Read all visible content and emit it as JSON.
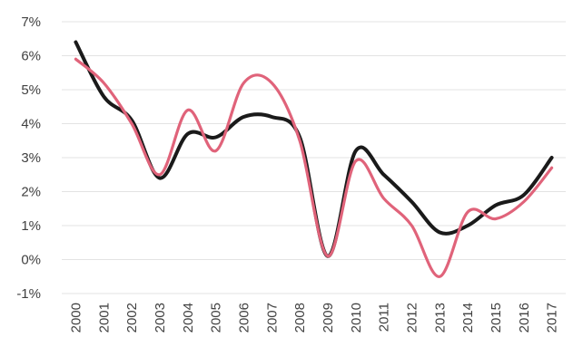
{
  "chart_data": {
    "type": "line",
    "title": "",
    "xlabel": "",
    "ylabel": "",
    "x": [
      "2000",
      "2001",
      "2002",
      "2003",
      "2004",
      "2005",
      "2006",
      "2007",
      "2008",
      "2009",
      "2010",
      "2011",
      "2012",
      "2013",
      "2014",
      "2015",
      "2016",
      "2017"
    ],
    "ylim": [
      -1,
      7
    ],
    "y_ticks": [
      "-1%",
      "0%",
      "1%",
      "2%",
      "3%",
      "4%",
      "5%",
      "6%",
      "7%"
    ],
    "grid": true,
    "legend": "none",
    "series": [
      {
        "color": "#1a1a1a",
        "values": [
          6.4,
          4.8,
          4.1,
          2.4,
          3.7,
          3.6,
          4.2,
          4.2,
          3.6,
          0.1,
          3.2,
          2.5,
          1.7,
          0.8,
          1.0,
          1.6,
          1.9,
          3.0
        ]
      },
      {
        "color": "#e0637a",
        "values": [
          5.9,
          5.2,
          4.0,
          2.5,
          4.4,
          3.2,
          5.2,
          5.2,
          3.5,
          0.1,
          2.9,
          1.8,
          1.0,
          -0.5,
          1.4,
          1.2,
          1.7,
          2.7
        ]
      }
    ]
  }
}
